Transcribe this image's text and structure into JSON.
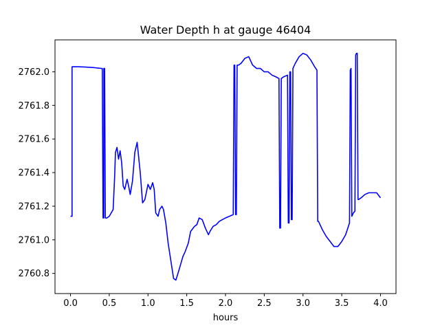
{
  "chart_data": {
    "type": "line",
    "title": "Water Depth h at gauge 46404",
    "xlabel": "hours",
    "ylabel": "",
    "xlim": [
      -0.2,
      4.2
    ],
    "ylim": [
      2760.68,
      2762.19
    ],
    "xticks": [
      0.0,
      0.5,
      1.0,
      1.5,
      2.0,
      2.5,
      3.0,
      3.5,
      4.0
    ],
    "xtick_labels": [
      "0.0",
      "0.5",
      "1.0",
      "1.5",
      "2.0",
      "2.5",
      "3.0",
      "3.5",
      "4.0"
    ],
    "yticks": [
      2760.8,
      2761.0,
      2761.2,
      2761.4,
      2761.6,
      2761.8,
      2762.0
    ],
    "ytick_labels": [
      "2760.8",
      "2761.0",
      "2761.2",
      "2761.4",
      "2761.6",
      "2761.8",
      "2762.0"
    ],
    "grid": false,
    "series": [
      {
        "color": "#0000ff",
        "x": [
          0.0,
          0.02,
          0.02,
          0.1,
          0.2,
          0.3,
          0.4,
          0.41,
          0.42,
          0.43,
          0.43,
          0.44,
          0.45,
          0.46,
          0.47,
          0.5,
          0.55,
          0.57,
          0.58,
          0.6,
          0.62,
          0.64,
          0.66,
          0.68,
          0.7,
          0.73,
          0.75,
          0.77,
          0.8,
          0.83,
          0.86,
          0.9,
          0.93,
          0.96,
          1.0,
          1.03,
          1.06,
          1.08,
          1.1,
          1.13,
          1.15,
          1.18,
          1.2,
          1.23,
          1.26,
          1.3,
          1.33,
          1.36,
          1.4,
          1.45,
          1.48,
          1.52,
          1.55,
          1.6,
          1.63,
          1.66,
          1.7,
          1.74,
          1.78,
          1.8,
          1.84,
          1.88,
          1.92,
          1.96,
          2.0,
          2.05,
          2.1,
          2.11,
          2.12,
          2.13,
          2.14,
          2.15,
          2.16,
          2.17,
          2.2,
          2.25,
          2.3,
          2.35,
          2.4,
          2.45,
          2.5,
          2.55,
          2.6,
          2.65,
          2.69,
          2.7,
          2.71,
          2.72,
          2.75,
          2.8,
          2.81,
          2.82,
          2.83,
          2.84,
          2.85,
          2.86,
          2.87,
          2.9,
          2.95,
          3.0,
          3.05,
          3.1,
          3.15,
          3.18,
          3.19,
          3.2,
          3.25,
          3.3,
          3.35,
          3.4,
          3.45,
          3.5,
          3.55,
          3.6,
          3.61,
          3.62,
          3.63,
          3.64,
          3.65,
          3.67,
          3.68,
          3.69,
          3.7,
          3.71,
          3.72,
          3.75,
          3.8,
          3.85,
          3.9,
          3.95,
          4.0
        ],
        "y": [
          2761.14,
          2761.14,
          2762.03,
          2762.03,
          2762.028,
          2762.025,
          2762.02,
          2762.02,
          2761.13,
          2761.13,
          2762.02,
          2762.02,
          2761.13,
          2761.13,
          2761.13,
          2761.14,
          2761.18,
          2761.38,
          2761.52,
          2761.55,
          2761.48,
          2761.53,
          2761.46,
          2761.32,
          2761.3,
          2761.36,
          2761.32,
          2761.27,
          2761.35,
          2761.52,
          2761.58,
          2761.4,
          2761.22,
          2761.24,
          2761.33,
          2761.3,
          2761.34,
          2761.3,
          2761.16,
          2761.14,
          2761.18,
          2761.2,
          2761.18,
          2761.1,
          2760.98,
          2760.86,
          2760.77,
          2760.76,
          2760.82,
          2760.9,
          2760.93,
          2760.98,
          2761.05,
          2761.08,
          2761.09,
          2761.13,
          2761.12,
          2761.07,
          2761.03,
          2761.05,
          2761.08,
          2761.09,
          2761.11,
          2761.12,
          2761.13,
          2761.14,
          2761.15,
          2762.04,
          2762.04,
          2761.15,
          2761.15,
          2762.04,
          2762.04,
          2762.04,
          2762.05,
          2762.08,
          2762.09,
          2762.04,
          2762.02,
          2762.02,
          2762.0,
          2762.0,
          2761.98,
          2761.97,
          2761.96,
          2761.07,
          2761.07,
          2761.96,
          2761.97,
          2761.98,
          2761.1,
          2761.1,
          2762.0,
          2762.0,
          2761.12,
          2761.12,
          2762.02,
          2762.05,
          2762.09,
          2762.11,
          2762.1,
          2762.07,
          2762.03,
          2762.01,
          2761.11,
          2761.11,
          2761.06,
          2761.02,
          2760.99,
          2760.96,
          2760.96,
          2760.99,
          2761.03,
          2761.1,
          2762.01,
          2762.02,
          2761.14,
          2761.15,
          2761.16,
          2761.17,
          2762.1,
          2762.11,
          2762.11,
          2761.24,
          2761.24,
          2761.25,
          2761.27,
          2761.28,
          2761.28,
          2761.28,
          2761.25
        ]
      }
    ]
  }
}
